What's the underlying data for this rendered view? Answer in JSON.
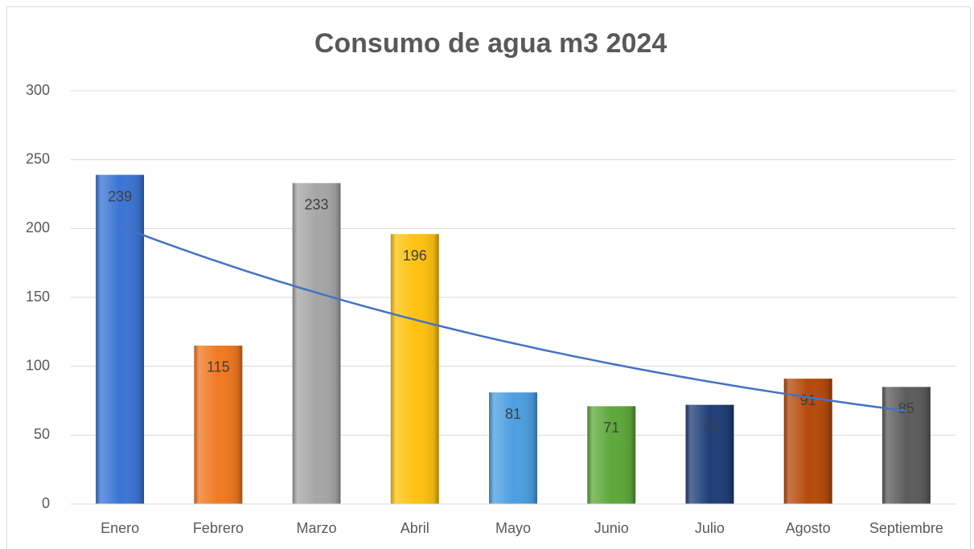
{
  "chart_data": {
    "type": "bar",
    "title": "Consumo de agua m3 2024",
    "categories": [
      "Enero",
      "Febrero",
      "Marzo",
      "Abril",
      "Mayo",
      "Junio",
      "Julio",
      "Agosto",
      "Septiembre"
    ],
    "values": [
      239,
      115,
      233,
      196,
      81,
      71,
      72,
      91,
      85
    ],
    "colors": [
      "#3a74d4",
      "#f07820",
      "#a6a6a6",
      "#ffc20e",
      "#4b9fe1",
      "#5ea83a",
      "#1f3e78",
      "#b54a0c",
      "#5c5c5c"
    ],
    "trendline": "exponential",
    "trendline_color": "#4472c4",
    "ylim": [
      0,
      300
    ],
    "yticks": [
      0,
      50,
      100,
      150,
      200,
      250,
      300
    ],
    "grid": true
  }
}
